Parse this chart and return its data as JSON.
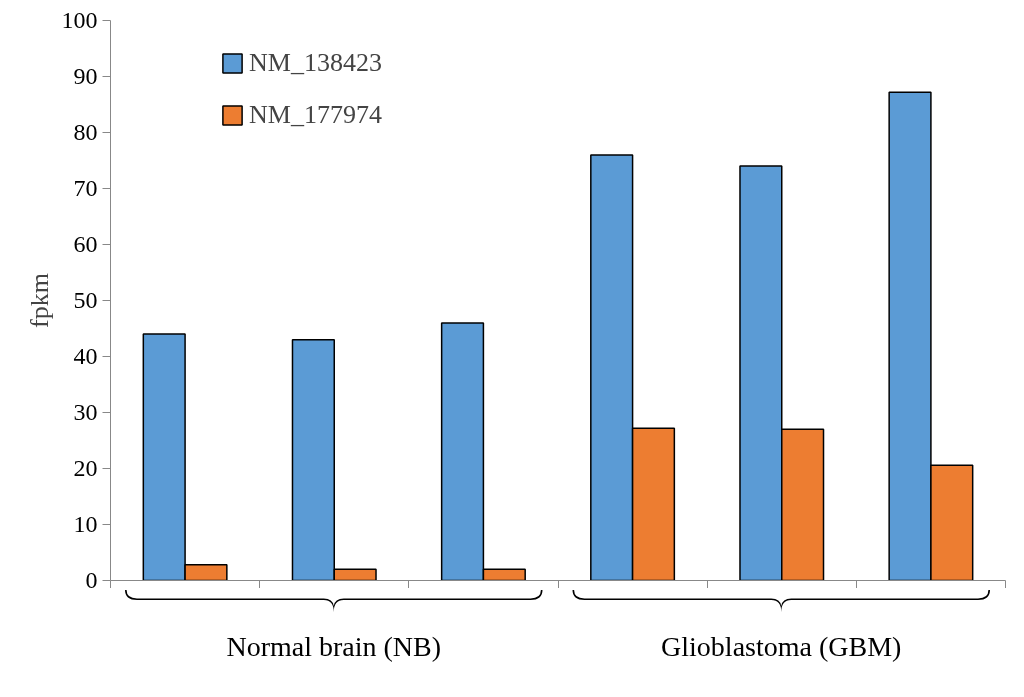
{
  "chart_data": {
    "type": "bar",
    "ylabel": "fpkm",
    "categories": [
      null,
      null,
      null,
      null,
      null,
      null
    ],
    "series": [
      {
        "name": "NM_138423",
        "color": "#5b9bd5",
        "values": [
          44,
          43,
          46,
          76,
          74,
          87.2
        ]
      },
      {
        "name": "NM_177974",
        "color": "#ed7d31",
        "values": [
          2.8,
          2,
          2,
          27.2,
          27,
          20.6
        ]
      }
    ],
    "ylim": [
      0,
      100
    ],
    "yticks": [
      0,
      10,
      20,
      30,
      40,
      50,
      60,
      70,
      80,
      90,
      100
    ],
    "grid": false,
    "legend": "top left",
    "tick_labels": "y",
    "annotations": [
      "Normal brain (NB)",
      "Glioblastoma (GBM)"
    ]
  }
}
